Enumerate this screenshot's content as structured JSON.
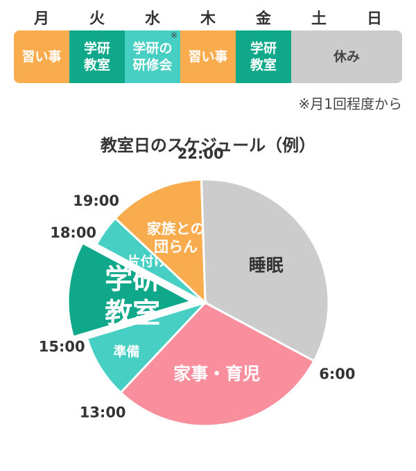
{
  "days": [
    "月",
    "火",
    "水",
    "木",
    "金",
    "土",
    "日"
  ],
  "week": [
    {
      "label": "習い事",
      "color": "#F9AC4E",
      "note": ""
    },
    {
      "label": "学研\n教室",
      "color": "#0FA88A",
      "note": ""
    },
    {
      "label": "学研の\n研修会",
      "color": "#47CFC3",
      "note": "※"
    },
    {
      "label": "習い事",
      "color": "#F9AC4E",
      "note": ""
    },
    {
      "label": "学研\n教室",
      "color": "#0FA88A",
      "note": ""
    },
    {
      "label": "休み",
      "color": "#CCCCCC",
      "note": ""
    }
  ],
  "footnote": "※月1回程度から",
  "chart_data": {
    "type": "pie",
    "title": "教室日のスケジュール（例）",
    "unit": "hours of day",
    "segments": [
      {
        "label": "睡眠",
        "start": "22:00",
        "end": "6:00",
        "hours": 8,
        "color": "#CCCCCC",
        "text_color": "#333333"
      },
      {
        "label": "家事・育児",
        "start": "6:00",
        "end": "13:00",
        "hours": 7,
        "color": "#F98E9C",
        "text_color": "#ffffff"
      },
      {
        "label": "準備",
        "start": "13:00",
        "end": "15:00",
        "hours": 2,
        "color": "#47CFC3",
        "text_color": "#ffffff"
      },
      {
        "label": "学研\n教室",
        "start": "15:00",
        "end": "18:00",
        "hours": 3,
        "color": "#0FA88A",
        "text_color": "#ffffff",
        "exploded": true
      },
      {
        "label": "片付け",
        "start": "18:00",
        "end": "19:00",
        "hours": 1,
        "color": "#47CFC3",
        "text_color": "#ffffff"
      },
      {
        "label": "家族との\n団らん",
        "start": "19:00",
        "end": "22:00",
        "hours": 3,
        "color": "#F9AC4E",
        "text_color": "#ffffff"
      }
    ],
    "time_labels": [
      "22:00",
      "6:00",
      "13:00",
      "15:00",
      "18:00",
      "19:00"
    ]
  }
}
